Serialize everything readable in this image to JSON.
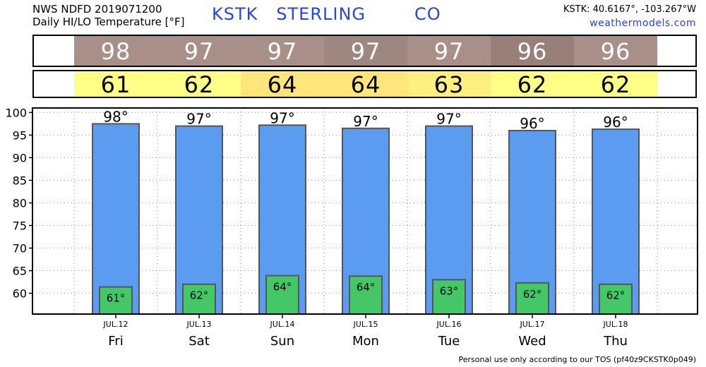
{
  "header": {
    "line1": "NWS NDFD 2019071200",
    "line2": "Daily HI/LO Temperature [°F]",
    "station": "KSTK   STERLING        CO",
    "coords": "KSTK: 40.6167°, -103.267°W",
    "site": "weathermodels.com"
  },
  "footer": "Personal use only according to our TOS (pf40z9CKSTK0p049)",
  "colors": {
    "hi_cells": [
      "#a89088",
      "#a89088",
      "#a89088",
      "#9e8780",
      "#a89088",
      "#988078",
      "#a89088"
    ],
    "lo_cells": [
      "#ffff88",
      "#ffff88",
      "#ffe57a",
      "#ffe57a",
      "#ffee80",
      "#ffff88",
      "#ffff88"
    ],
    "high_bar": "#5b9cf0",
    "low_bar": "#44c766",
    "bar_stroke": "#555555"
  },
  "chart_data": {
    "type": "bar",
    "categories": [
      "Fri",
      "Sat",
      "Sun",
      "Mon",
      "Tue",
      "Wed",
      "Thu"
    ],
    "dates": [
      "JUL.12",
      "JUL.13",
      "JUL.14",
      "JUL.15",
      "JUL.16",
      "JUL.17",
      "JUL.18"
    ],
    "series": [
      {
        "values": [
          98,
          97,
          97,
          97,
          97,
          96,
          96
        ]
      },
      {
        "values": [
          61,
          62,
          64,
          64,
          63,
          62,
          62
        ]
      }
    ],
    "high_plotted": [
      97.5,
      97,
      97.2,
      96.5,
      97,
      96,
      96.3
    ],
    "low_plotted": [
      61.4,
      62,
      63.9,
      63.8,
      63,
      62.3,
      62
    ],
    "high_labels": [
      "98°",
      "97°",
      "97°",
      "97°",
      "97°",
      "96°",
      "96°"
    ],
    "low_labels": [
      "61°",
      "62°",
      "64°",
      "64°",
      "63°",
      "62°",
      "62°"
    ],
    "ylim": [
      55.4,
      101
    ],
    "yticks": [
      60,
      65,
      70,
      75,
      80,
      85,
      90,
      95,
      100
    ],
    "grid": true
  }
}
